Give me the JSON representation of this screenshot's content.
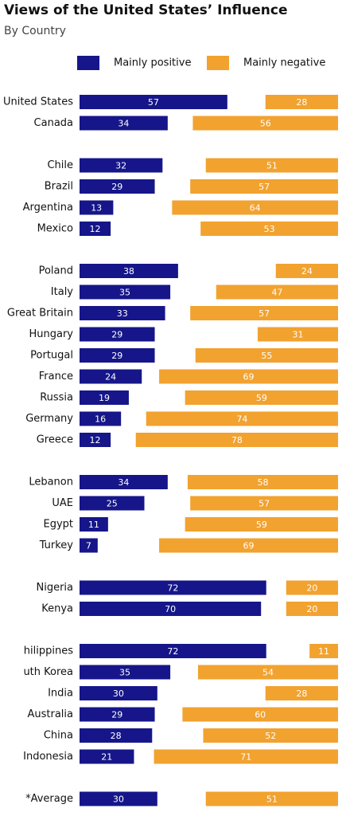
{
  "chart_data": {
    "type": "diverging-bar",
    "title": "Views of the United States’ Influence",
    "subtitle": "By Country",
    "categories": [
      "United States",
      "Canada",
      null,
      "Chile",
      "Brazil",
      "Argentina",
      "Mexico",
      null,
      "Poland",
      "Italy",
      "Great Britain",
      "Hungary",
      "Portugal",
      "France",
      "Russia",
      "Germany",
      "Greece",
      null,
      "Lebanon",
      "UAE",
      "Egypt",
      "Turkey",
      null,
      "Nigeria",
      "Kenya",
      null,
      "hilippines",
      "uth Korea",
      "India",
      "Australia",
      "China",
      "Indonesia",
      null,
      "*Average"
    ],
    "series": [
      {
        "name": "Mainly positive",
        "color": "#16168a",
        "values": [
          57,
          34,
          null,
          32,
          29,
          13,
          12,
          null,
          38,
          35,
          33,
          29,
          29,
          24,
          19,
          16,
          12,
          null,
          34,
          25,
          11,
          7,
          null,
          72,
          70,
          null,
          72,
          35,
          30,
          29,
          28,
          21,
          null,
          30
        ]
      },
      {
        "name": "Mainly negative",
        "color": "#f2a22f",
        "values": [
          28,
          56,
          null,
          51,
          57,
          64,
          53,
          null,
          24,
          47,
          57,
          31,
          55,
          69,
          59,
          74,
          78,
          null,
          58,
          57,
          59,
          69,
          null,
          20,
          20,
          null,
          11,
          54,
          28,
          60,
          52,
          71,
          null,
          51
        ]
      }
    ]
  }
}
